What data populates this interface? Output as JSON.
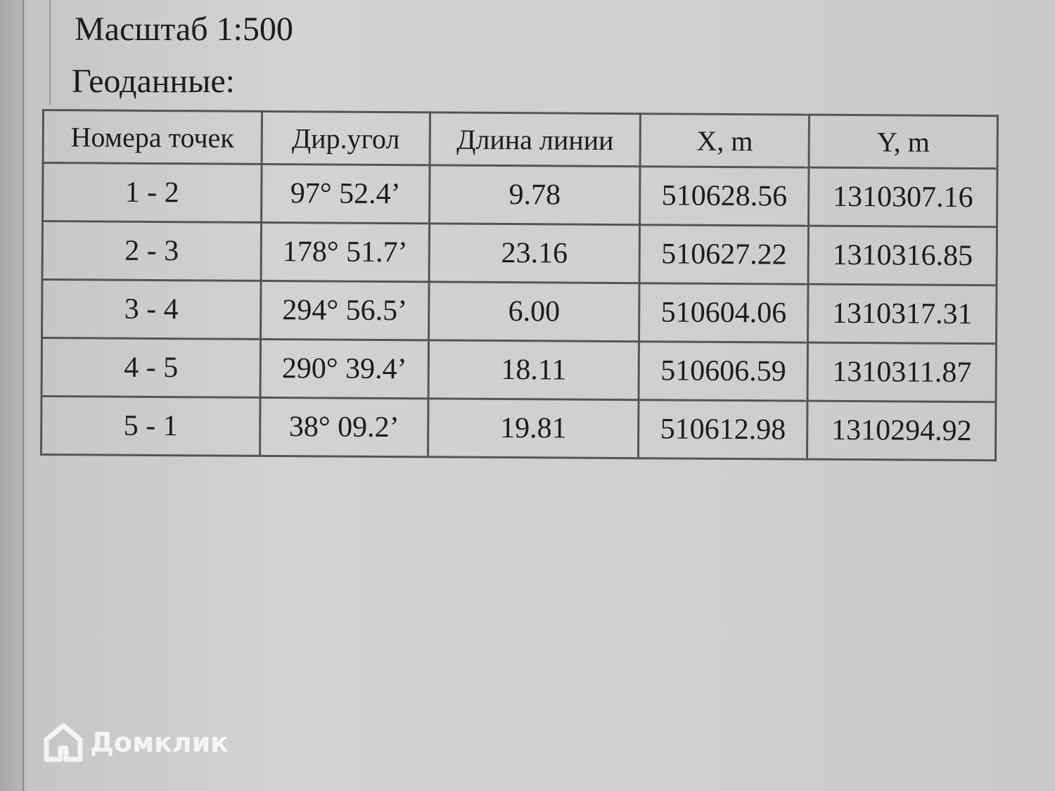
{
  "scale_label": "Масштаб 1:500",
  "geodata_label": "Геоданные:",
  "table": {
    "headers": [
      "Номера точек",
      "Дир.угол",
      "Длина линии",
      "X, m",
      "Y, m"
    ],
    "rows": [
      [
        "1 - 2",
        "97° 52.4’",
        "9.78",
        "510628.56",
        "1310307.16"
      ],
      [
        "2 - 3",
        "178° 51.7’",
        "23.16",
        "510627.22",
        "1310316.85"
      ],
      [
        "3 - 4",
        "294° 56.5’",
        "6.00",
        "510604.06",
        "1310317.31"
      ],
      [
        "4 - 5",
        "290° 39.4’",
        "18.11",
        "510606.59",
        "1310311.87"
      ],
      [
        "5 - 1",
        "38° 09.2’",
        "19.81",
        "510612.98",
        "1310294.92"
      ]
    ]
  },
  "watermark": "Домклик"
}
